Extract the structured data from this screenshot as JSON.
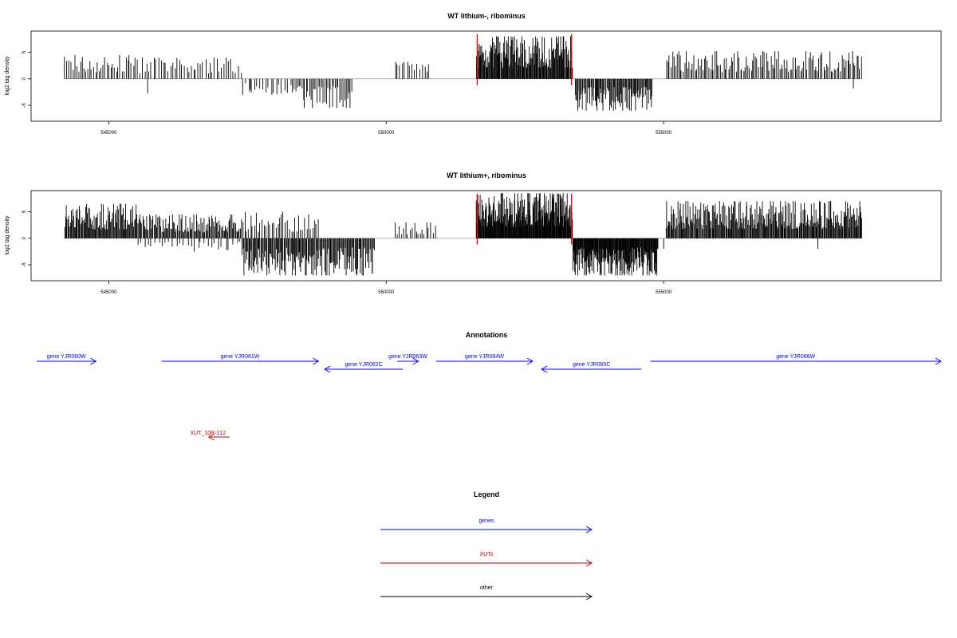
{
  "colors": {
    "bars": "#000000",
    "markers": "#ff0000",
    "genes": "#0000ff",
    "xuts": "#cc0000",
    "other": "#000000",
    "baseline": "#888888"
  },
  "chart_data": [
    {
      "type": "bar",
      "title": "WT lithium-, ribominus",
      "ylabel": "log2 tag density",
      "ylim": [
        -8,
        9
      ],
      "y_ticks": [
        -5,
        0,
        5
      ],
      "xlim": [
        543600,
        560000
      ],
      "x_ticks": [
        {
          "value": 545000,
          "label": "545000"
        },
        {
          "value": 550000,
          "label": "550000"
        },
        {
          "value": 555000,
          "label": "555000"
        }
      ],
      "marker_lines": [
        551640,
        553340
      ],
      "grid": false,
      "legend": "none",
      "density": "sparse",
      "segments": [
        {
          "start": 544200,
          "end": 545500,
          "sign": 1,
          "max": 4.5,
          "count": 38
        },
        {
          "start": 545500,
          "end": 547400,
          "sign": 1,
          "max": 4.0,
          "count": 45
        },
        {
          "start": 547400,
          "end": 548300,
          "sign": -1,
          "max": 3.0,
          "count": 18
        },
        {
          "start": 548300,
          "end": 549400,
          "sign": -1,
          "max": 5.5,
          "count": 40
        },
        {
          "start": 550150,
          "end": 550800,
          "sign": 1,
          "max": 3.2,
          "count": 15
        },
        {
          "start": 551620,
          "end": 553360,
          "sign": 1,
          "max": 8.0,
          "count": 150
        },
        {
          "start": 553400,
          "end": 554800,
          "sign": -1,
          "max": 6.0,
          "count": 90
        },
        {
          "start": 555040,
          "end": 558580,
          "sign": 1,
          "max": 5.2,
          "count": 130
        }
      ],
      "outliers": [
        {
          "x": 545700,
          "y": -2.8
        },
        {
          "x": 547550,
          "y": -2.0
        },
        {
          "x": 553800,
          "y": -6.0
        },
        {
          "x": 558420,
          "y": -1.8
        }
      ]
    },
    {
      "type": "bar",
      "title": "WT lithium+, ribominus",
      "ylabel": "log2 tag density",
      "ylim": [
        -8,
        9
      ],
      "y_ticks": [
        -5,
        0,
        5
      ],
      "xlim": [
        543600,
        560000
      ],
      "x_ticks": [
        {
          "value": 545000,
          "label": "545000"
        },
        {
          "value": 550000,
          "label": "550000"
        },
        {
          "value": 555000,
          "label": "555000"
        }
      ],
      "marker_lines": [
        551640,
        553340
      ],
      "grid": false,
      "legend": "none",
      "density": "dense",
      "segments": [
        {
          "start": 544200,
          "end": 545500,
          "sign": 1,
          "max": 6.5,
          "count": 90
        },
        {
          "start": 545500,
          "end": 547400,
          "sign": 1,
          "max": 4.5,
          "count": 110
        },
        {
          "start": 545500,
          "end": 547400,
          "sign": -1,
          "max": 2.5,
          "count": 30
        },
        {
          "start": 547400,
          "end": 549800,
          "sign": -1,
          "max": 7.0,
          "count": 150
        },
        {
          "start": 547400,
          "end": 548800,
          "sign": 1,
          "max": 5.0,
          "count": 40
        },
        {
          "start": 550150,
          "end": 550900,
          "sign": 1,
          "max": 3.0,
          "count": 20
        },
        {
          "start": 551620,
          "end": 553360,
          "sign": 1,
          "max": 8.5,
          "count": 200
        },
        {
          "start": 553360,
          "end": 554900,
          "sign": -1,
          "max": 7.0,
          "count": 170
        },
        {
          "start": 555040,
          "end": 558580,
          "sign": 1,
          "max": 7.0,
          "count": 260
        }
      ],
      "outliers": [
        {
          "x": 555000,
          "y": -2.0
        },
        {
          "x": 557780,
          "y": -2.0
        }
      ]
    }
  ],
  "annotations": {
    "title": "Annotations",
    "genes": [
      {
        "label": "gene YJR060W",
        "start": 543700,
        "end": 544770,
        "strand": "+",
        "row": 0
      },
      {
        "label": "gene YJR061W",
        "start": 545950,
        "end": 548780,
        "strand": "+",
        "row": 0
      },
      {
        "label": "gene YJR062C",
        "start": 548890,
        "end": 550300,
        "strand": "-",
        "row": 1
      },
      {
        "label": "gene YJR063W",
        "start": 550200,
        "end": 550580,
        "strand": "+",
        "row": 0
      },
      {
        "label": "gene YJR064W",
        "start": 550900,
        "end": 552640,
        "strand": "+",
        "row": 0
      },
      {
        "label": "gene YJR065C",
        "start": 552800,
        "end": 554600,
        "strand": "-",
        "row": 1
      },
      {
        "label": "gene YJR066W",
        "start": 554760,
        "end": 560000,
        "strand": "+",
        "row": 0
      }
    ],
    "xuts": [
      {
        "label": "XUT_10R-212",
        "start": 546800,
        "end": 547180,
        "strand": "-"
      }
    ]
  },
  "legend": {
    "title": "Legend",
    "items": [
      {
        "label": "genes",
        "color": "#0000ff"
      },
      {
        "label": "XUTs",
        "color": "#cc0000"
      },
      {
        "label": "other",
        "color": "#000000"
      }
    ]
  }
}
